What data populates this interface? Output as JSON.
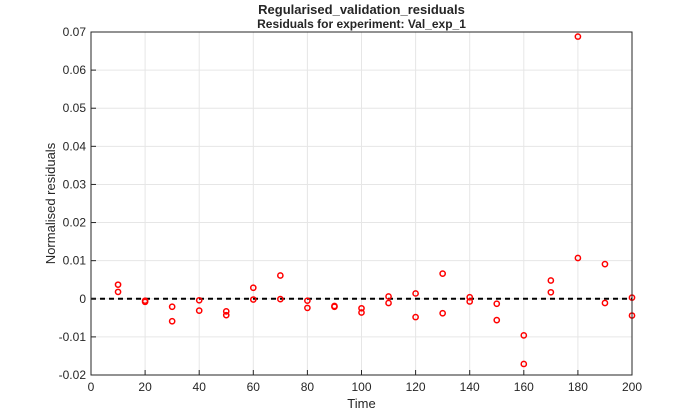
{
  "chart_data": {
    "type": "scatter",
    "title": "Residuals for experiment: Val_exp_1",
    "suptitle": "Regularised_validation_residuals",
    "xlabel": "Time",
    "ylabel": "Normalised residuals",
    "xlim": [
      0,
      200
    ],
    "ylim": [
      -0.02,
      0.07
    ],
    "xticks": [
      "0",
      "20",
      "40",
      "60",
      "80",
      "100",
      "120",
      "140",
      "160",
      "180",
      "200"
    ],
    "yticks": [
      "-0.02",
      "-0.01",
      "0",
      "0.01",
      "0.02",
      "0.03",
      "0.04",
      "0.05",
      "0.06",
      "0.07"
    ],
    "grid": true,
    "marker_color": "#ff0000",
    "reference_line": {
      "y": 0,
      "style": "dashed",
      "color": "#000000"
    },
    "points": [
      {
        "x": 10,
        "y": 0.0037
      },
      {
        "x": 10,
        "y": 0.0018
      },
      {
        "x": 20,
        "y": -0.0005
      },
      {
        "x": 20,
        "y": -0.0008
      },
      {
        "x": 30,
        "y": -0.0021
      },
      {
        "x": 30,
        "y": -0.0059
      },
      {
        "x": 40,
        "y": -0.0004
      },
      {
        "x": 40,
        "y": -0.0031
      },
      {
        "x": 50,
        "y": -0.0033
      },
      {
        "x": 50,
        "y": -0.0043
      },
      {
        "x": 60,
        "y": 0.0029
      },
      {
        "x": 60,
        "y": -0.0002
      },
      {
        "x": 70,
        "y": 0.0061
      },
      {
        "x": 70,
        "y": -0.0001
      },
      {
        "x": 80,
        "y": -0.0005
      },
      {
        "x": 80,
        "y": -0.0024
      },
      {
        "x": 90,
        "y": -0.0019
      },
      {
        "x": 90,
        "y": -0.0021
      },
      {
        "x": 100,
        "y": -0.0025
      },
      {
        "x": 100,
        "y": -0.0036
      },
      {
        "x": 110,
        "y": 0.0006
      },
      {
        "x": 110,
        "y": -0.0011
      },
      {
        "x": 120,
        "y": 0.0014
      },
      {
        "x": 120,
        "y": -0.0048
      },
      {
        "x": 130,
        "y": 0.0066
      },
      {
        "x": 130,
        "y": -0.0038
      },
      {
        "x": 140,
        "y": 0.0004
      },
      {
        "x": 140,
        "y": -0.0007
      },
      {
        "x": 150,
        "y": -0.0013
      },
      {
        "x": 150,
        "y": -0.0056
      },
      {
        "x": 160,
        "y": -0.0096
      },
      {
        "x": 160,
        "y": -0.0171
      },
      {
        "x": 170,
        "y": 0.0048
      },
      {
        "x": 170,
        "y": 0.0017
      },
      {
        "x": 180,
        "y": 0.0688
      },
      {
        "x": 180,
        "y": 0.0107
      },
      {
        "x": 190,
        "y": 0.0091
      },
      {
        "x": 190,
        "y": -0.0011
      },
      {
        "x": 200,
        "y": 0.0003
      },
      {
        "x": 200,
        "y": -0.0044
      }
    ]
  }
}
